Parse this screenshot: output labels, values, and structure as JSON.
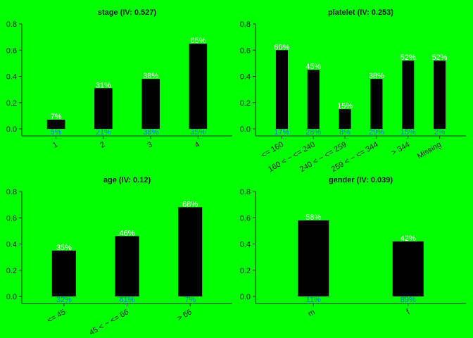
{
  "chart_data": [
    {
      "type": "bar",
      "title": "stage (IV: 0.527)",
      "categories": [
        "1",
        "2",
        "3",
        "4"
      ],
      "values": [
        0.07,
        0.31,
        0.38,
        0.65
      ],
      "value_labels": [
        "7%",
        "31%",
        "38%",
        "65%"
      ],
      "count_labels": [
        "5%",
        "21%",
        "38%",
        "35%"
      ],
      "ylim": [
        0,
        0.8
      ],
      "yticks": [
        0,
        0.2,
        0.4,
        0.6,
        0.8
      ],
      "ytick_labels": [
        "0.0",
        "0.2",
        "0.4",
        "0.6",
        "0.8"
      ],
      "rotate_xticks": true
    },
    {
      "type": "bar",
      "title": "platelet (IV: 0.253)",
      "categories": [
        "<= 160",
        "160 < ~ <= 240",
        "240 < ~ <= 259",
        "259 < ~ <= 344",
        "> 344",
        "Missing"
      ],
      "values": [
        0.6,
        0.45,
        0.15,
        0.38,
        0.52,
        0.52
      ],
      "value_labels": [
        "60%",
        "45%",
        "15%",
        "38%",
        "52%",
        "52%"
      ],
      "count_labels": [
        "17%",
        "28%",
        "8%",
        "29%",
        "15%",
        "2%"
      ],
      "ylim": [
        0,
        0.8
      ],
      "yticks": [
        0,
        0.2,
        0.4,
        0.6,
        0.8
      ],
      "ytick_labels": [
        "0.0",
        "0.2",
        "0.4",
        "0.6",
        "0.8"
      ],
      "rotate_xticks": true
    },
    {
      "type": "bar",
      "title": "age (IV: 0.12)",
      "categories": [
        "<= 45",
        "45 < ~ <= 66",
        "> 66"
      ],
      "values": [
        0.35,
        0.46,
        0.68
      ],
      "value_labels": [
        "35%",
        "46%",
        "68%"
      ],
      "count_labels": [
        "32%",
        "61%",
        "7%"
      ],
      "ylim": [
        0,
        0.8
      ],
      "yticks": [
        0,
        0.2,
        0.4,
        0.6,
        0.8
      ],
      "ytick_labels": [
        "0.0",
        "0.2",
        "0.4",
        "0.6",
        "0.8"
      ],
      "rotate_xticks": true
    },
    {
      "type": "bar",
      "title": "gender (IV: 0.039)",
      "categories": [
        "m",
        "f"
      ],
      "values": [
        0.58,
        0.42
      ],
      "value_labels": [
        "58%",
        "42%"
      ],
      "count_labels": [
        "11%",
        "89%"
      ],
      "ylim": [
        0,
        0.8
      ],
      "yticks": [
        0,
        0.2,
        0.4,
        0.6,
        0.8
      ],
      "ytick_labels": [
        "0.0",
        "0.2",
        "0.4",
        "0.6",
        "0.8"
      ],
      "rotate_xticks": true
    }
  ],
  "colors": {
    "background": "#00FF00",
    "bar": "#000000",
    "value_label": "#FFFFFF",
    "count_label": "#1F6FD6",
    "axis": "#333333"
  }
}
